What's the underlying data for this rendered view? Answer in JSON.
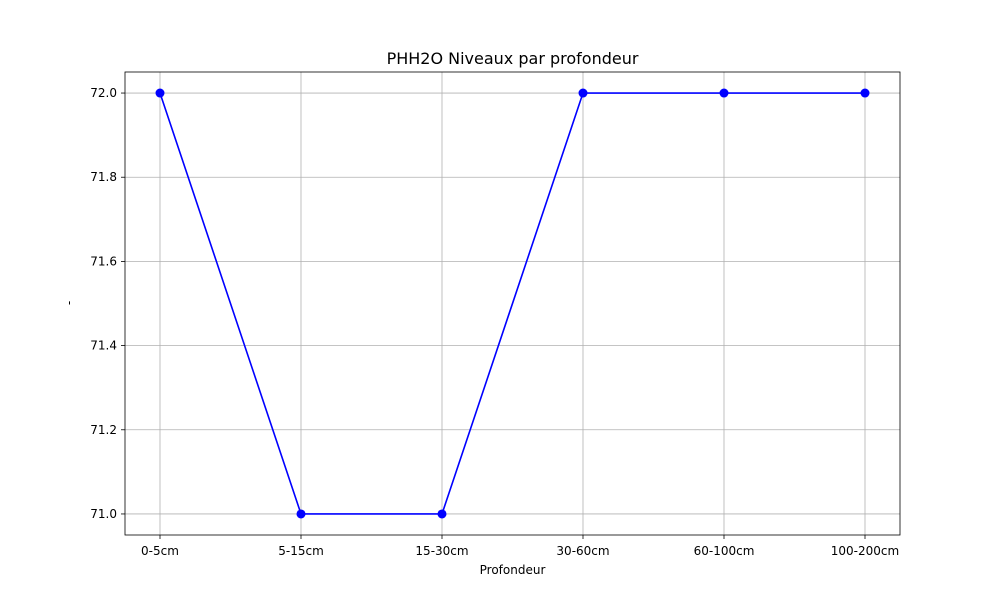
{
  "chart_data": {
    "type": "line",
    "title": "PHH2O Niveaux par profondeur",
    "xlabel": "Profondeur",
    "ylabel": "-",
    "categories": [
      "0-5cm",
      "5-15cm",
      "15-30cm",
      "30-60cm",
      "60-100cm",
      "100-200cm"
    ],
    "series": [
      {
        "values": [
          72.0,
          71.0,
          71.0,
          72.0,
          72.0,
          72.0
        ],
        "color": "#0000ff"
      }
    ],
    "ylim": [
      70.95,
      72.05
    ],
    "yticks": [
      "71.0",
      "71.2",
      "71.4",
      "71.6",
      "71.8",
      "72.0"
    ],
    "grid": true,
    "legend": "none"
  }
}
